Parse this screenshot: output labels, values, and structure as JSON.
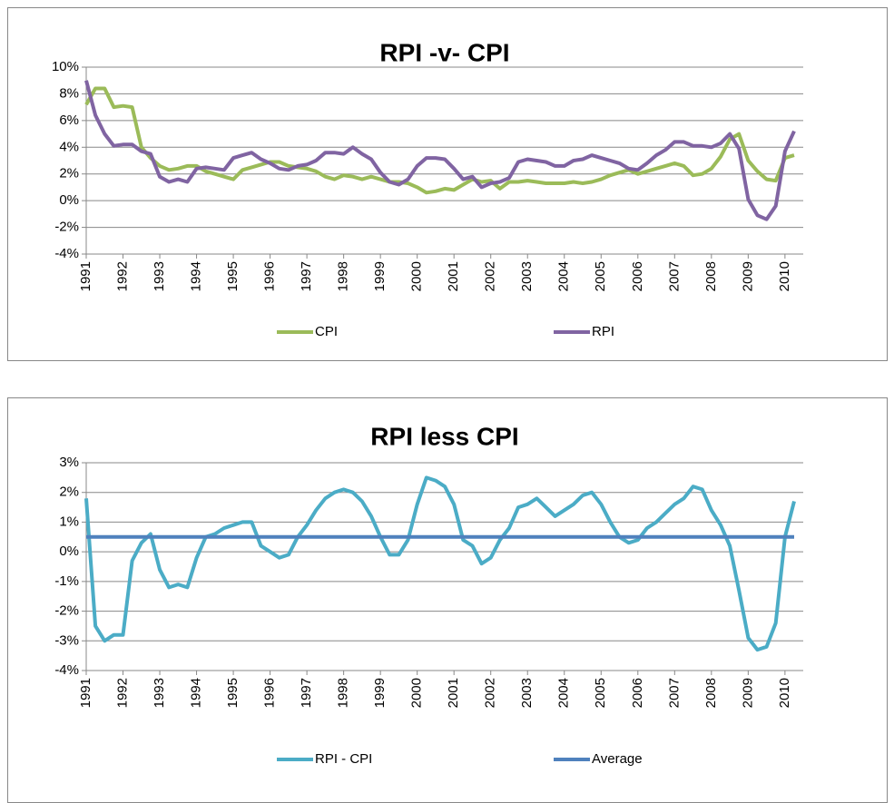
{
  "chart_data": [
    {
      "type": "line",
      "title": "RPI -v- CPI",
      "categories": [
        "1991",
        null,
        null,
        null,
        "1992",
        null,
        null,
        null,
        "1993",
        null,
        null,
        null,
        "1994",
        null,
        null,
        null,
        "1995",
        null,
        null,
        null,
        "1996",
        null,
        null,
        null,
        "1997",
        null,
        null,
        null,
        "1998",
        null,
        null,
        null,
        "1999",
        null,
        null,
        null,
        "2000",
        null,
        null,
        null,
        "2001",
        null,
        null,
        null,
        "2002",
        null,
        null,
        null,
        "2003",
        null,
        null,
        null,
        "2004",
        null,
        null,
        null,
        "2005",
        null,
        null,
        null,
        "2006",
        null,
        null,
        null,
        "2007",
        null,
        null,
        null,
        "2008",
        null,
        null,
        null,
        "2009",
        null,
        null,
        null,
        "2010",
        null
      ],
      "ylim": [
        -4,
        10
      ],
      "yticks": [
        {
          "value": -4,
          "label": "-4%"
        },
        {
          "value": -2,
          "label": "-2%"
        },
        {
          "value": 0,
          "label": "0%"
        },
        {
          "value": 2,
          "label": "2%"
        },
        {
          "value": 4,
          "label": "4%"
        },
        {
          "value": 6,
          "label": "6%"
        },
        {
          "value": 8,
          "label": "8%"
        },
        {
          "value": 10,
          "label": "10%"
        }
      ],
      "grid": true,
      "series": [
        {
          "name": "CPI",
          "color": "#9bbb59",
          "values": [
            7.2,
            8.4,
            8.4,
            7.0,
            7.1,
            7.0,
            4.0,
            3.2,
            2.6,
            2.3,
            2.4,
            2.6,
            2.6,
            2.2,
            2.0,
            1.8,
            1.6,
            2.3,
            2.5,
            2.7,
            2.9,
            2.9,
            2.6,
            2.5,
            2.4,
            2.2,
            1.8,
            1.6,
            1.9,
            1.8,
            1.6,
            1.8,
            1.6,
            1.4,
            1.4,
            1.3,
            1.0,
            0.6,
            0.7,
            0.9,
            0.8,
            1.2,
            1.6,
            1.4,
            1.5,
            0.9,
            1.4,
            1.4,
            1.5,
            1.4,
            1.3,
            1.3,
            1.3,
            1.4,
            1.3,
            1.4,
            1.6,
            1.9,
            2.1,
            2.3,
            2.0,
            2.2,
            2.4,
            2.6,
            2.8,
            2.6,
            1.9,
            2.0,
            2.4,
            3.3,
            4.6,
            5.0,
            3.0,
            2.2,
            1.6,
            1.5,
            3.2,
            3.4
          ]
        },
        {
          "name": "RPI",
          "color": "#8064a2",
          "values": [
            9.0,
            6.4,
            5.0,
            4.1,
            4.2,
            4.2,
            3.7,
            3.5,
            1.8,
            1.4,
            1.6,
            1.4,
            2.4,
            2.5,
            2.4,
            2.3,
            3.2,
            3.4,
            3.6,
            3.1,
            2.8,
            2.4,
            2.3,
            2.6,
            2.7,
            3.0,
            3.6,
            3.6,
            3.5,
            4.0,
            3.5,
            3.1,
            2.1,
            1.4,
            1.2,
            1.6,
            2.6,
            3.2,
            3.2,
            3.1,
            2.4,
            1.6,
            1.8,
            1.0,
            1.3,
            1.4,
            1.7,
            2.9,
            3.1,
            3.0,
            2.9,
            2.6,
            2.6,
            3.0,
            3.1,
            3.4,
            3.2,
            3.0,
            2.8,
            2.4,
            2.3,
            2.8,
            3.4,
            3.8,
            4.4,
            4.4,
            4.1,
            4.1,
            4.0,
            4.3,
            5.0,
            3.9,
            0.1,
            -1.1,
            -1.4,
            -0.4,
            3.7,
            5.2
          ]
        }
      ]
    },
    {
      "type": "line",
      "title": "RPI less CPI",
      "categories": [
        "1991",
        null,
        null,
        null,
        "1992",
        null,
        null,
        null,
        "1993",
        null,
        null,
        null,
        "1994",
        null,
        null,
        null,
        "1995",
        null,
        null,
        null,
        "1996",
        null,
        null,
        null,
        "1997",
        null,
        null,
        null,
        "1998",
        null,
        null,
        null,
        "1999",
        null,
        null,
        null,
        "2000",
        null,
        null,
        null,
        "2001",
        null,
        null,
        null,
        "2002",
        null,
        null,
        null,
        "2003",
        null,
        null,
        null,
        "2004",
        null,
        null,
        null,
        "2005",
        null,
        null,
        null,
        "2006",
        null,
        null,
        null,
        "2007",
        null,
        null,
        null,
        "2008",
        null,
        null,
        null,
        "2009",
        null,
        null,
        null,
        "2010",
        null
      ],
      "ylim": [
        -4,
        3
      ],
      "yticks": [
        {
          "value": -4,
          "label": "-4%"
        },
        {
          "value": -3,
          "label": "-3%"
        },
        {
          "value": -2,
          "label": "-2%"
        },
        {
          "value": -1,
          "label": "-1%"
        },
        {
          "value": 0,
          "label": "0%"
        },
        {
          "value": 1,
          "label": "1%"
        },
        {
          "value": 2,
          "label": "2%"
        },
        {
          "value": 3,
          "label": "3%"
        }
      ],
      "grid": true,
      "series": [
        {
          "name": "RPI - CPI",
          "color": "#4bacc6",
          "values": [
            1.8,
            -2.5,
            -3.0,
            -2.8,
            -2.8,
            -0.3,
            0.3,
            0.6,
            -0.6,
            -1.2,
            -1.1,
            -1.2,
            -0.2,
            0.5,
            0.6,
            0.8,
            0.9,
            1.0,
            1.0,
            0.2,
            0.0,
            -0.2,
            -0.1,
            0.5,
            0.9,
            1.4,
            1.8,
            2.0,
            2.1,
            2.0,
            1.7,
            1.2,
            0.5,
            -0.1,
            -0.1,
            0.4,
            1.6,
            2.5,
            2.4,
            2.2,
            1.6,
            0.4,
            0.2,
            -0.4,
            -0.2,
            0.4,
            0.8,
            1.5,
            1.6,
            1.8,
            1.5,
            1.2,
            1.4,
            1.6,
            1.9,
            2.0,
            1.6,
            1.0,
            0.5,
            0.3,
            0.4,
            0.8,
            1.0,
            1.3,
            1.6,
            1.8,
            2.2,
            2.1,
            1.4,
            0.9,
            0.2,
            -1.3,
            -2.9,
            -3.3,
            -3.2,
            -2.4,
            0.5,
            1.7
          ]
        },
        {
          "name": "Average",
          "color": "#4f81bd",
          "values": [
            0.5,
            0.5,
            0.5,
            0.5,
            0.5,
            0.5,
            0.5,
            0.5,
            0.5,
            0.5,
            0.5,
            0.5,
            0.5,
            0.5,
            0.5,
            0.5,
            0.5,
            0.5,
            0.5,
            0.5,
            0.5,
            0.5,
            0.5,
            0.5,
            0.5,
            0.5,
            0.5,
            0.5,
            0.5,
            0.5,
            0.5,
            0.5,
            0.5,
            0.5,
            0.5,
            0.5,
            0.5,
            0.5,
            0.5,
            0.5,
            0.5,
            0.5,
            0.5,
            0.5,
            0.5,
            0.5,
            0.5,
            0.5,
            0.5,
            0.5,
            0.5,
            0.5,
            0.5,
            0.5,
            0.5,
            0.5,
            0.5,
            0.5,
            0.5,
            0.5,
            0.5,
            0.5,
            0.5,
            0.5,
            0.5,
            0.5,
            0.5,
            0.5,
            0.5,
            0.5,
            0.5,
            0.5,
            0.5,
            0.5,
            0.5,
            0.5,
            0.5,
            0.5
          ]
        }
      ]
    }
  ]
}
